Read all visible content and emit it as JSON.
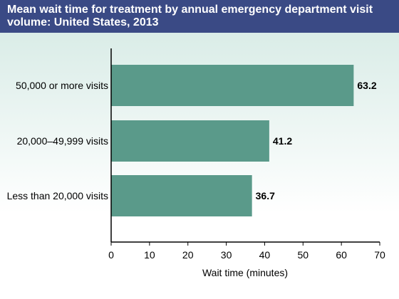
{
  "chart_data": {
    "type": "bar",
    "orientation": "horizontal",
    "title": "Mean wait time for treatment by annual emergency department visit volume: United States, 2013",
    "xlabel": "Wait time (minutes)",
    "ylabel": "",
    "categories": [
      "50,000 or more visits",
      "20,000–49,999 visits",
      "Less than 20,000 visits"
    ],
    "values": [
      63.2,
      41.2,
      36.7
    ],
    "data_labels": [
      "63.2",
      "41.2",
      "36.7"
    ],
    "xlim": [
      0,
      70
    ],
    "xticks": [
      "0",
      "10",
      "20",
      "30",
      "40",
      "50",
      "60",
      "70"
    ],
    "grid": false,
    "colors": {
      "bar": "#5a9a8a",
      "header": "#3a4a85",
      "background_top": "#d3e9e3"
    }
  }
}
